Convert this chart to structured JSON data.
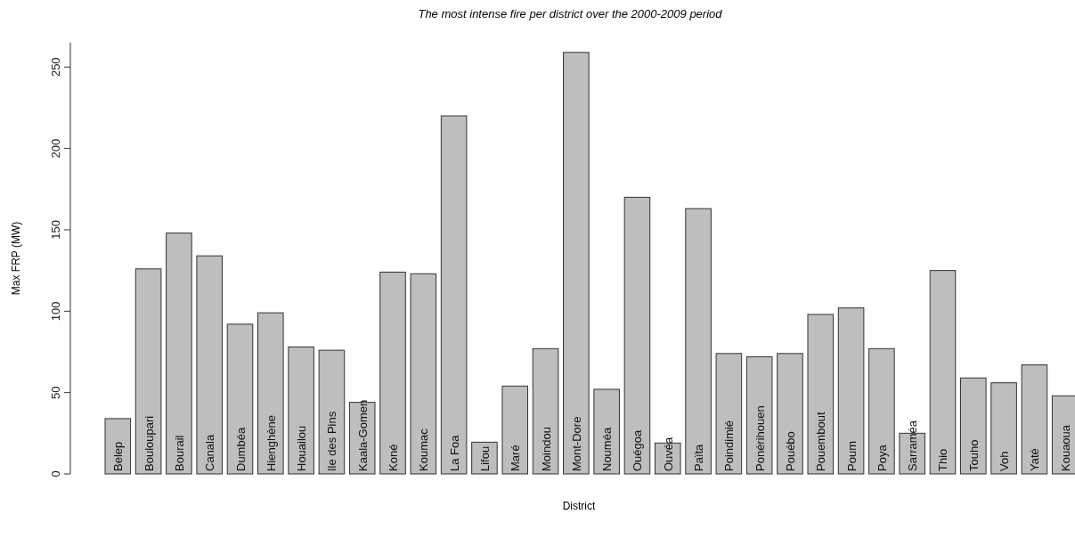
{
  "chart_data": {
    "type": "bar",
    "title": "The most intense fire per district over the 2000-2009 period",
    "xlabel": "District",
    "ylabel": "Max FRP (MW)",
    "categories": [
      "Belep",
      "Bouloupari",
      "Bourail",
      "Canala",
      "Dumbéa",
      "Hienghène",
      "Houailou",
      "Ile des Pins",
      "Kaala-Gomen",
      "Koné",
      "Koumac",
      "La Foa",
      "Lifou",
      "Maré",
      "Moindou",
      "Mont-Dore",
      "Nouméa",
      "Ouégoa",
      "Ouvéa",
      "Païta",
      "Poindimié",
      "Ponérihouen",
      "Pouébo",
      "Pouembout",
      "Poum",
      "Poya",
      "Sarraméa",
      "Thio",
      "Touho",
      "Voh",
      "Yaté",
      "Kouaoua"
    ],
    "values": [
      34,
      126,
      148,
      134,
      92,
      99,
      78,
      76,
      44,
      124,
      123,
      220,
      19.5,
      54,
      77,
      259,
      52,
      170,
      19,
      163,
      74,
      72,
      74,
      98,
      102,
      77,
      25,
      125,
      59,
      56,
      67,
      48
    ],
    "color": "#bebebe",
    "ylim": [
      0,
      265
    ],
    "yticks": [
      0,
      50,
      100,
      150,
      200,
      250
    ],
    "grid": false
  }
}
